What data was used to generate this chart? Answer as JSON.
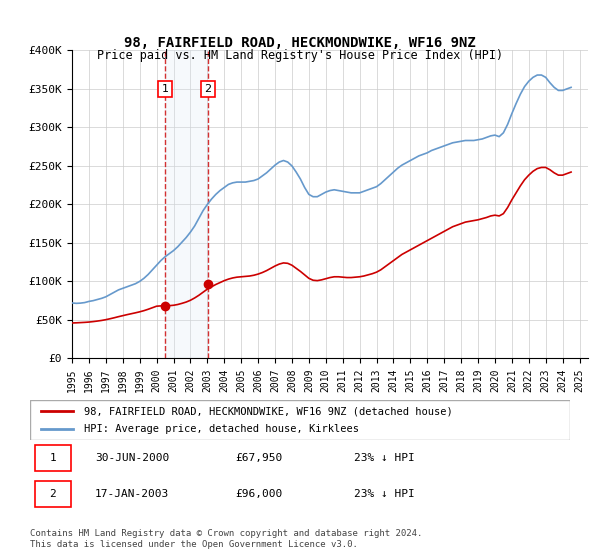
{
  "title": "98, FAIRFIELD ROAD, HECKMONDWIKE, WF16 9NZ",
  "subtitle": "Price paid vs. HM Land Registry's House Price Index (HPI)",
  "ylabel_ticks": [
    "£0",
    "£50K",
    "£100K",
    "£150K",
    "£200K",
    "£250K",
    "£300K",
    "£350K",
    "£400K"
  ],
  "ytick_values": [
    0,
    50000,
    100000,
    150000,
    200000,
    250000,
    300000,
    350000,
    400000
  ],
  "ylim": [
    0,
    400000
  ],
  "xlim_start": 1995.0,
  "xlim_end": 2025.5,
  "line_red_color": "#cc0000",
  "line_blue_color": "#6699cc",
  "transaction1": {
    "date_num": 2000.496,
    "price": 67950,
    "label": "1"
  },
  "transaction2": {
    "date_num": 2003.046,
    "price": 96000,
    "label": "2"
  },
  "shade_color": "#dde8f5",
  "dashed_color": "#cc0000",
  "legend_line1": "98, FAIRFIELD ROAD, HECKMONDWIKE, WF16 9NZ (detached house)",
  "legend_line2": "HPI: Average price, detached house, Kirklees",
  "table_rows": [
    [
      "1",
      "30-JUN-2000",
      "£67,950",
      "23% ↓ HPI"
    ],
    [
      "2",
      "17-JAN-2003",
      "£96,000",
      "23% ↓ HPI"
    ]
  ],
  "footnote": "Contains HM Land Registry data © Crown copyright and database right 2024.\nThis data is licensed under the Open Government Licence v3.0.",
  "background_color": "#ffffff",
  "grid_color": "#cccccc",
  "hpi_data": {
    "years": [
      1995.0,
      1995.25,
      1995.5,
      1995.75,
      1996.0,
      1996.25,
      1996.5,
      1996.75,
      1997.0,
      1997.25,
      1997.5,
      1997.75,
      1998.0,
      1998.25,
      1998.5,
      1998.75,
      1999.0,
      1999.25,
      1999.5,
      1999.75,
      2000.0,
      2000.25,
      2000.5,
      2000.75,
      2001.0,
      2001.25,
      2001.5,
      2001.75,
      2002.0,
      2002.25,
      2002.5,
      2002.75,
      2003.0,
      2003.25,
      2003.5,
      2003.75,
      2004.0,
      2004.25,
      2004.5,
      2004.75,
      2005.0,
      2005.25,
      2005.5,
      2005.75,
      2006.0,
      2006.25,
      2006.5,
      2006.75,
      2007.0,
      2007.25,
      2007.5,
      2007.75,
      2008.0,
      2008.25,
      2008.5,
      2008.75,
      2009.0,
      2009.25,
      2009.5,
      2009.75,
      2010.0,
      2010.25,
      2010.5,
      2010.75,
      2011.0,
      2011.25,
      2011.5,
      2011.75,
      2012.0,
      2012.25,
      2012.5,
      2012.75,
      2013.0,
      2013.25,
      2013.5,
      2013.75,
      2014.0,
      2014.25,
      2014.5,
      2014.75,
      2015.0,
      2015.25,
      2015.5,
      2015.75,
      2016.0,
      2016.25,
      2016.5,
      2016.75,
      2017.0,
      2017.25,
      2017.5,
      2017.75,
      2018.0,
      2018.25,
      2018.5,
      2018.75,
      2019.0,
      2019.25,
      2019.5,
      2019.75,
      2020.0,
      2020.25,
      2020.5,
      2020.75,
      2021.0,
      2021.25,
      2021.5,
      2021.75,
      2022.0,
      2022.25,
      2022.5,
      2022.75,
      2023.0,
      2023.25,
      2023.5,
      2023.75,
      2024.0,
      2024.25,
      2024.5
    ],
    "values": [
      72000,
      71500,
      71800,
      72500,
      74000,
      75000,
      76500,
      78000,
      80000,
      83000,
      86000,
      89000,
      91000,
      93000,
      95000,
      97000,
      100000,
      104000,
      109000,
      115000,
      121000,
      127000,
      132000,
      136000,
      140000,
      145000,
      151000,
      157000,
      164000,
      172000,
      182000,
      192000,
      200000,
      207000,
      213000,
      218000,
      222000,
      226000,
      228000,
      229000,
      229000,
      229000,
      230000,
      231000,
      233000,
      237000,
      241000,
      246000,
      251000,
      255000,
      257000,
      255000,
      250000,
      242000,
      233000,
      222000,
      213000,
      210000,
      210000,
      213000,
      216000,
      218000,
      219000,
      218000,
      217000,
      216000,
      215000,
      215000,
      215000,
      217000,
      219000,
      221000,
      223000,
      227000,
      232000,
      237000,
      242000,
      247000,
      251000,
      254000,
      257000,
      260000,
      263000,
      265000,
      267000,
      270000,
      272000,
      274000,
      276000,
      278000,
      280000,
      281000,
      282000,
      283000,
      283000,
      283000,
      284000,
      285000,
      287000,
      289000,
      290000,
      288000,
      293000,
      304000,
      318000,
      331000,
      343000,
      353000,
      360000,
      365000,
      368000,
      368000,
      365000,
      358000,
      352000,
      348000,
      348000,
      350000,
      352000
    ]
  },
  "price_paid_data": {
    "years": [
      1995.0,
      1995.25,
      1995.5,
      1995.75,
      1996.0,
      1996.25,
      1996.5,
      1996.75,
      1997.0,
      1997.25,
      1997.5,
      1997.75,
      1998.0,
      1998.25,
      1998.5,
      1998.75,
      1999.0,
      1999.25,
      1999.5,
      1999.75,
      2000.0,
      2000.25,
      2000.5,
      2000.75,
      2001.0,
      2001.25,
      2001.5,
      2001.75,
      2002.0,
      2002.25,
      2002.5,
      2002.75,
      2003.0,
      2003.25,
      2003.5,
      2003.75,
      2004.0,
      2004.25,
      2004.5,
      2004.75,
      2005.0,
      2005.25,
      2005.5,
      2005.75,
      2006.0,
      2006.25,
      2006.5,
      2006.75,
      2007.0,
      2007.25,
      2007.5,
      2007.75,
      2008.0,
      2008.25,
      2008.5,
      2008.75,
      2009.0,
      2009.25,
      2009.5,
      2009.75,
      2010.0,
      2010.25,
      2010.5,
      2010.75,
      2011.0,
      2011.25,
      2011.5,
      2011.75,
      2012.0,
      2012.25,
      2012.5,
      2012.75,
      2013.0,
      2013.25,
      2013.5,
      2013.75,
      2014.0,
      2014.25,
      2014.5,
      2014.75,
      2015.0,
      2015.25,
      2015.5,
      2015.75,
      2016.0,
      2016.25,
      2016.5,
      2016.75,
      2017.0,
      2017.25,
      2017.5,
      2017.75,
      2018.0,
      2018.25,
      2018.5,
      2018.75,
      2019.0,
      2019.25,
      2019.5,
      2019.75,
      2020.0,
      2020.25,
      2020.5,
      2020.75,
      2021.0,
      2021.25,
      2021.5,
      2021.75,
      2022.0,
      2022.25,
      2022.5,
      2022.75,
      2023.0,
      2023.25,
      2023.5,
      2023.75,
      2024.0,
      2024.25,
      2024.5
    ],
    "values": [
      46000,
      46200,
      46500,
      46800,
      47200,
      47800,
      48500,
      49300,
      50300,
      51500,
      52800,
      54200,
      55500,
      56800,
      58000,
      59200,
      60500,
      62000,
      63800,
      65800,
      67800,
      68200,
      67950,
      68500,
      69000,
      70000,
      71500,
      73200,
      75500,
      78500,
      82000,
      86000,
      90000,
      93000,
      96000,
      98500,
      101000,
      103000,
      104500,
      105500,
      106000,
      106500,
      107000,
      108000,
      109500,
      111500,
      114000,
      117000,
      120000,
      122500,
      124000,
      123500,
      121000,
      117000,
      113000,
      108500,
      104000,
      101500,
      101000,
      102000,
      103500,
      105000,
      106000,
      106000,
      105500,
      105000,
      105000,
      105500,
      106000,
      107000,
      108500,
      110000,
      112000,
      115000,
      119000,
      123000,
      127000,
      131000,
      135000,
      138000,
      141000,
      144000,
      147000,
      150000,
      153000,
      156000,
      159000,
      162000,
      165000,
      168000,
      171000,
      173000,
      175000,
      177000,
      178000,
      179000,
      180000,
      181500,
      183000,
      185000,
      186000,
      185000,
      188000,
      196000,
      206000,
      215000,
      224000,
      232000,
      238000,
      243000,
      246500,
      248000,
      248000,
      245000,
      241000,
      238000,
      238000,
      240000,
      242000
    ]
  }
}
